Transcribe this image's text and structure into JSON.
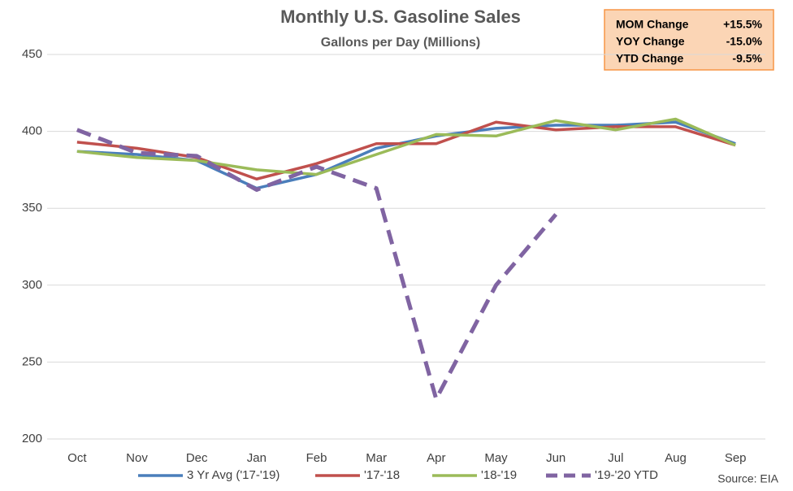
{
  "chart_data": {
    "type": "line",
    "title": "Monthly U.S. Gasoline Sales",
    "subtitle": "Gallons per Day (Millions)",
    "categories": [
      "Oct",
      "Nov",
      "Dec",
      "Jan",
      "Feb",
      "Mar",
      "Apr",
      "May",
      "Jun",
      "Jul",
      "Aug",
      "Sep"
    ],
    "series": [
      {
        "name": "3 Yr Avg ('17-'19)",
        "color": "#4a7ebb",
        "dashed": false,
        "values": [
          387,
          385,
          381,
          363,
          372,
          389,
          397,
          402,
          404,
          404,
          406,
          392
        ]
      },
      {
        "name": "'17-'18",
        "color": "#c0504d",
        "dashed": false,
        "values": [
          393,
          389,
          383,
          369,
          379,
          392,
          392,
          406,
          401,
          403,
          403,
          391
        ]
      },
      {
        "name": "'18-'19",
        "color": "#9bbb59",
        "dashed": false,
        "values": [
          387,
          383,
          381,
          375,
          372,
          385,
          398,
          397,
          407,
          401,
          408,
          391
        ]
      },
      {
        "name": "'19-'20 YTD",
        "color": "#8064a2",
        "dashed": true,
        "values": [
          401,
          386,
          384,
          362,
          377,
          363,
          226,
          300,
          346,
          null,
          null,
          null
        ]
      }
    ],
    "ylim": [
      200,
      450
    ],
    "yticks": [
      200,
      250,
      300,
      350,
      400,
      450
    ],
    "grid": true,
    "legend": "bottom",
    "info_box": {
      "rows": [
        [
          "MOM Change",
          "+15.5%"
        ],
        [
          "YOY Change",
          "-15.0%"
        ],
        [
          "YTD Change",
          "-9.5%"
        ]
      ]
    },
    "source": "Source: EIA"
  }
}
